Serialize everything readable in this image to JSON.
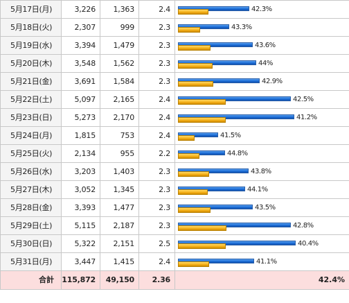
{
  "rows": [
    {
      "date": "5月17日(月)",
      "col1": "3,226",
      "col2": "1,363",
      "col3": "2.4",
      "pct": "42.3%",
      "total_value": 3226,
      "part_value": 1363
    },
    {
      "date": "5月18日(火)",
      "col1": "2,307",
      "col2": "999",
      "col3": "2.3",
      "pct": "43.3%",
      "total_value": 2307,
      "part_value": 999
    },
    {
      "date": "5月19日(水)",
      "col1": "3,394",
      "col2": "1,479",
      "col3": "2.3",
      "pct": "43.6%",
      "total_value": 3394,
      "part_value": 1479
    },
    {
      "date": "5月20日(木)",
      "col1": "3,548",
      "col2": "1,562",
      "col3": "2.3",
      "pct": "44%",
      "total_value": 3548,
      "part_value": 1562
    },
    {
      "date": "5月21日(金)",
      "col1": "3,691",
      "col2": "1,584",
      "col3": "2.3",
      "pct": "42.9%",
      "total_value": 3691,
      "part_value": 1584
    },
    {
      "date": "5月22日(土)",
      "col1": "5,097",
      "col2": "2,165",
      "col3": "2.4",
      "pct": "42.5%",
      "total_value": 5097,
      "part_value": 2165
    },
    {
      "date": "5月23日(日)",
      "col1": "5,273",
      "col2": "2,170",
      "col3": "2.4",
      "pct": "41.2%",
      "total_value": 5273,
      "part_value": 2170
    },
    {
      "date": "5月24日(月)",
      "col1": "1,815",
      "col2": "753",
      "col3": "2.4",
      "pct": "41.5%",
      "total_value": 1815,
      "part_value": 753
    },
    {
      "date": "5月25日(火)",
      "col1": "2,134",
      "col2": "955",
      "col3": "2.2",
      "pct": "44.8%",
      "total_value": 2134,
      "part_value": 955
    },
    {
      "date": "5月26日(水)",
      "col1": "3,203",
      "col2": "1,403",
      "col3": "2.3",
      "pct": "43.8%",
      "total_value": 3203,
      "part_value": 1403
    },
    {
      "date": "5月27日(木)",
      "col1": "3,052",
      "col2": "1,345",
      "col3": "2.3",
      "pct": "44.1%",
      "total_value": 3052,
      "part_value": 1345
    },
    {
      "date": "5月28日(金)",
      "col1": "3,393",
      "col2": "1,477",
      "col3": "2.3",
      "pct": "43.5%",
      "total_value": 3393,
      "part_value": 1477
    },
    {
      "date": "5月29日(土)",
      "col1": "5,115",
      "col2": "2,187",
      "col3": "2.3",
      "pct": "42.8%",
      "total_value": 5115,
      "part_value": 2187
    },
    {
      "date": "5月30日(日)",
      "col1": "5,322",
      "col2": "2,151",
      "col3": "2.5",
      "pct": "40.4%",
      "total_value": 5322,
      "part_value": 2151
    },
    {
      "date": "5月31日(月)",
      "col1": "3,447",
      "col2": "1,415",
      "col3": "2.4",
      "pct": "41.1%",
      "total_value": 3447,
      "part_value": 1415
    }
  ],
  "bar_scale_max": 5322,
  "colors": {
    "total_bar": "#1d6fd8",
    "part_bar": "#f6b21a",
    "total_row_bg": "#fcdede"
  },
  "total": {
    "label": "合計",
    "col1": "115,872",
    "col2": "49,150",
    "col3": "2.36",
    "pct": "42.4%"
  }
}
